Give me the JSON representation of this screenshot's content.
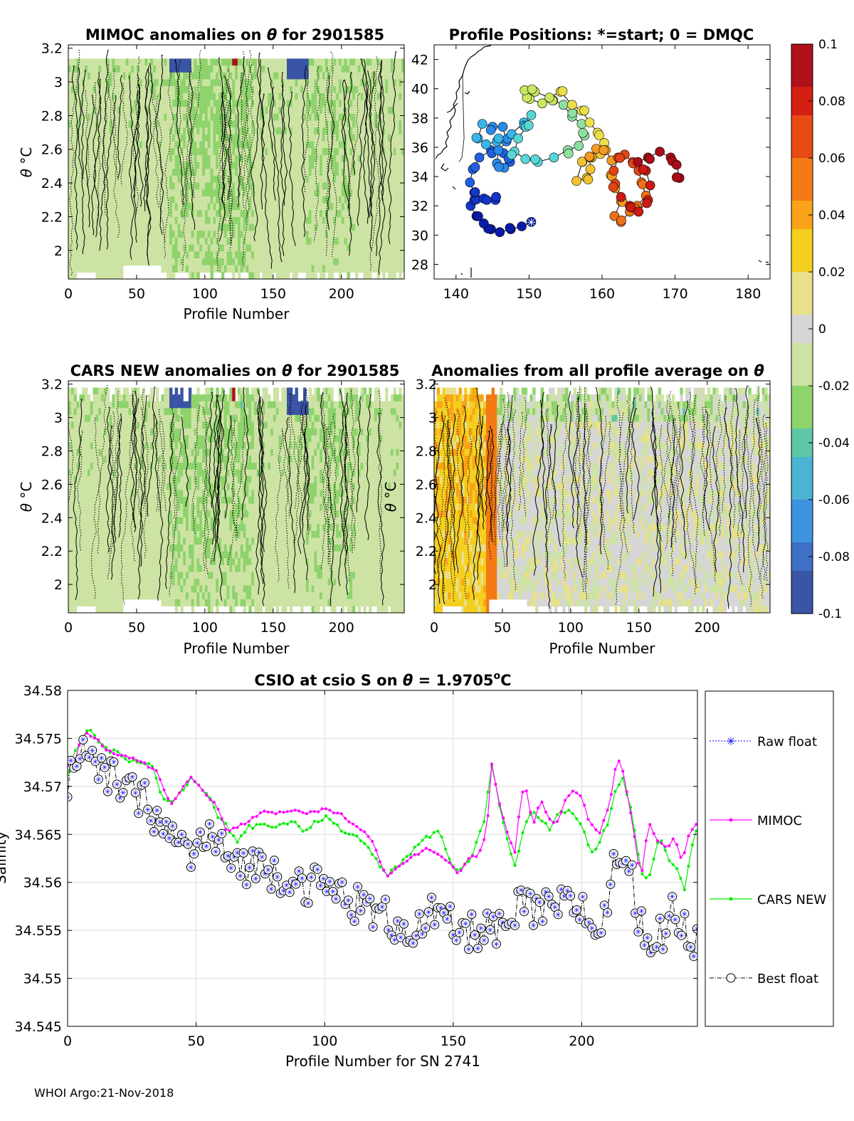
{
  "footer": "WHOI Argo:21-Nov-2018",
  "colors": {
    "mimoc": "#ff00ff",
    "cars": "#00ee00",
    "raw": "#0000ff",
    "best": "#000000",
    "grid": "#dddddd"
  },
  "chart_data": [
    {
      "id": "mimoc",
      "type": "heatmap",
      "title_left": "MIMOC anomalies on",
      "title_symbol": "θ",
      "title_right": "for 2901585",
      "xlabel": "Profile Number",
      "ylabel": "θ °C",
      "ylabel_symbol": "θ",
      "ylabel_unit": "°C",
      "xlim": [
        0,
        246
      ],
      "ylim": [
        1.83,
        3.22
      ],
      "xticks": [
        "0",
        "50",
        "100",
        "150",
        "200"
      ],
      "yticks": [
        "2",
        "2.2",
        "2.4",
        "2.6",
        "2.8",
        "3",
        "3.2"
      ],
      "value_range": [
        -0.01,
        0.006
      ],
      "note": "anomaly field with solid/dotted contours"
    },
    {
      "id": "positions",
      "type": "scatter",
      "title": "Profile Positions: *=start; 0 = DMQC",
      "xlim": [
        137,
        183
      ],
      "ylim": [
        27,
        43
      ],
      "xticks": [
        "140",
        "150",
        "160",
        "170",
        "180"
      ],
      "yticks": [
        "28",
        "30",
        "32",
        "34",
        "36",
        "38",
        "40",
        "42"
      ],
      "track": [
        [
          150.3,
          30.9
        ],
        [
          149.0,
          30.6
        ],
        [
          147.5,
          30.4
        ],
        [
          146.0,
          30.2
        ],
        [
          144.8,
          30.4
        ],
        [
          143.8,
          30.8
        ],
        [
          142.8,
          31.3
        ],
        [
          142.0,
          32.0
        ],
        [
          142.5,
          32.4
        ],
        [
          143.8,
          32.5
        ],
        [
          145.4,
          32.4
        ],
        [
          144.2,
          32.4
        ],
        [
          142.5,
          32.9
        ],
        [
          141.9,
          33.6
        ],
        [
          142.3,
          34.5
        ],
        [
          143.2,
          35.3
        ],
        [
          144.8,
          35.8
        ],
        [
          146.5,
          35.6
        ],
        [
          147.4,
          35.0
        ],
        [
          146.6,
          34.6
        ],
        [
          145.6,
          34.9
        ],
        [
          145.8,
          35.8
        ],
        [
          146.9,
          36.4
        ],
        [
          146.4,
          37.4
        ],
        [
          145.0,
          37.4
        ],
        [
          143.6,
          37.6
        ],
        [
          143.0,
          36.6
        ],
        [
          144.1,
          36.2
        ],
        [
          145.6,
          36.4
        ],
        [
          147.6,
          36.9
        ],
        [
          149.3,
          37.7
        ],
        [
          150.3,
          38.2
        ],
        [
          149.6,
          37.4
        ],
        [
          148.5,
          36.6
        ],
        [
          148.0,
          35.7
        ],
        [
          149.5,
          35.2
        ],
        [
          151.2,
          35.0
        ],
        [
          153.4,
          35.3
        ],
        [
          155.3,
          35.8
        ],
        [
          156.8,
          36.1
        ],
        [
          157.6,
          36.8
        ],
        [
          157.2,
          37.6
        ],
        [
          155.9,
          38.1
        ],
        [
          154.7,
          38.9
        ],
        [
          153.3,
          39.2
        ],
        [
          151.8,
          39.0
        ],
        [
          150.1,
          39.3
        ],
        [
          149.4,
          39.9
        ],
        [
          150.8,
          39.8
        ],
        [
          152.8,
          39.4
        ],
        [
          154.3,
          39.8
        ],
        [
          155.9,
          38.9
        ],
        [
          157.2,
          38.5
        ],
        [
          158.3,
          37.7
        ],
        [
          159.4,
          37.0
        ],
        [
          160.3,
          36.3
        ],
        [
          159.6,
          35.6
        ],
        [
          158.6,
          35.3
        ],
        [
          157.3,
          35.0
        ],
        [
          156.5,
          33.7
        ],
        [
          157.9,
          33.9
        ],
        [
          158.4,
          34.5
        ],
        [
          158.3,
          35.3
        ],
        [
          159.2,
          35.9
        ],
        [
          160.5,
          35.8
        ],
        [
          161.3,
          35.1
        ],
        [
          161.2,
          34.1
        ],
        [
          161.8,
          33.2
        ],
        [
          162.6,
          32.3
        ],
        [
          161.7,
          31.3
        ],
        [
          162.6,
          30.9
        ],
        [
          163.8,
          31.6
        ],
        [
          164.8,
          32.0
        ],
        [
          166.0,
          32.7
        ],
        [
          165.4,
          33.6
        ],
        [
          165.0,
          34.4
        ],
        [
          164.2,
          35.0
        ],
        [
          163.1,
          35.5
        ],
        [
          162.2,
          35.3
        ],
        [
          161.6,
          34.4
        ],
        [
          161.8,
          33.5
        ],
        [
          162.6,
          32.6
        ],
        [
          163.8,
          32.0
        ],
        [
          165.0,
          31.6
        ],
        [
          166.3,
          32.4
        ],
        [
          166.6,
          33.4
        ],
        [
          166.0,
          34.4
        ],
        [
          164.9,
          35.0
        ],
        [
          166.3,
          35.3
        ],
        [
          167.9,
          35.7
        ],
        [
          169.4,
          35.3
        ],
        [
          170.2,
          34.8
        ],
        [
          170.6,
          33.9
        ]
      ],
      "trench_west": [
        [
          140.9,
          41.0
        ],
        [
          141.0,
          38.5
        ],
        [
          141.1,
          36.6
        ],
        [
          140.8,
          35.3
        ],
        [
          140.4,
          35.0
        ]
      ]
    },
    {
      "id": "colorbar",
      "type": "heatmap",
      "ticks": [
        "0.1",
        "0.08",
        "0.06",
        "0.04",
        "0.02",
        "0",
        "-0.02",
        "-0.04",
        "-0.06",
        "-0.08",
        "-0.1"
      ],
      "range": [
        -0.1,
        0.1
      ],
      "colors": [
        "#3a55a5",
        "#3f70c6",
        "#3e93e0",
        "#4cb4d2",
        "#5dc6a7",
        "#8ed36c",
        "#cde3a4",
        "#d6d6d6",
        "#e8e08a",
        "#f5cf1f",
        "#f8a318",
        "#f47a15",
        "#e94a14",
        "#d41f13",
        "#b0101a"
      ]
    },
    {
      "id": "cars",
      "type": "heatmap",
      "title_left": "CARS NEW anomalies on",
      "title_symbol": "θ",
      "title_right": "for 2901585",
      "xlabel": "Profile Number",
      "ylabel": "θ °C",
      "ylabel_symbol": "θ",
      "ylabel_unit": "°C",
      "xlim": [
        0,
        246
      ],
      "ylim": [
        1.83,
        3.22
      ],
      "xticks": [
        "0",
        "50",
        "100",
        "150",
        "200"
      ],
      "yticks": [
        "2",
        "2.2",
        "2.4",
        "2.6",
        "2.8",
        "3",
        "3.2"
      ],
      "value_range": [
        -0.01,
        0.006
      ]
    },
    {
      "id": "allavg",
      "type": "heatmap",
      "title_left": "Anomalies from all profile average on",
      "title_symbol": "θ",
      "xlabel": "Profile Number",
      "ylabel": "θ °C",
      "ylabel_symbol": "θ",
      "ylabel_unit": "°C",
      "xlim": [
        0,
        246
      ],
      "ylim": [
        1.83,
        3.22
      ],
      "xticks": [
        "0",
        "50",
        "100",
        "150",
        "200"
      ],
      "yticks": [
        "2",
        "2.2",
        "2.4",
        "2.6",
        "2.8",
        "3",
        "3.2"
      ],
      "value_range": [
        -0.004,
        0.012
      ]
    },
    {
      "id": "csio",
      "type": "line",
      "title_left": "CSIO at csio S on",
      "title_symbol": "θ",
      "title_right": "= 1.9705",
      "title_sup": "o",
      "title_unit": "C",
      "xlabel": "Profile Number for SN 2741",
      "ylabel": "Salinity",
      "xlim": [
        0,
        245
      ],
      "ylim": [
        34.545,
        34.58
      ],
      "xticks": [
        "0",
        "50",
        "100",
        "150",
        "200"
      ],
      "yticks": [
        "34.545",
        "34.55",
        "34.555",
        "34.56",
        "34.565",
        "34.57",
        "34.575",
        "34.58"
      ],
      "legend": [
        "Raw float",
        "MIMOC",
        "CARS NEW",
        "Best float"
      ],
      "mimoc_ctrl": [
        [
          0,
          34.5722
        ],
        [
          3,
          34.5728
        ],
        [
          5,
          34.575
        ],
        [
          8,
          34.5755
        ],
        [
          12,
          34.5748
        ],
        [
          15,
          34.5738
        ],
        [
          20,
          34.5732
        ],
        [
          25,
          34.573
        ],
        [
          30,
          34.5724
        ],
        [
          35,
          34.5714
        ],
        [
          40,
          34.568
        ],
        [
          48,
          34.571
        ],
        [
          58,
          34.568
        ],
        [
          62,
          34.5652
        ],
        [
          66,
          34.5658
        ],
        [
          70,
          34.5662
        ],
        [
          76,
          34.5675
        ],
        [
          82,
          34.5672
        ],
        [
          88,
          34.5676
        ],
        [
          94,
          34.5672
        ],
        [
          100,
          34.5676
        ],
        [
          106,
          34.5672
        ],
        [
          110,
          34.5663
        ],
        [
          114,
          34.5656
        ],
        [
          118,
          34.5646
        ],
        [
          124,
          34.5606
        ],
        [
          128,
          34.5616
        ],
        [
          134,
          34.5626
        ],
        [
          140,
          34.5636
        ],
        [
          145,
          34.5628
        ],
        [
          149,
          34.5621
        ],
        [
          152,
          34.5608
        ],
        [
          156,
          34.5625
        ],
        [
          160,
          34.5629
        ],
        [
          163,
          34.5652
        ],
        [
          165,
          34.5722
        ],
        [
          168,
          34.5682
        ],
        [
          171,
          34.5651
        ],
        [
          174,
          34.5632
        ],
        [
          176,
          34.5682
        ],
        [
          178,
          34.5704
        ],
        [
          181,
          34.5658
        ],
        [
          184,
          34.5688
        ],
        [
          187,
          34.5666
        ],
        [
          190,
          34.5658
        ],
        [
          193,
          34.5682
        ],
        [
          197,
          34.5698
        ],
        [
          200,
          34.5688
        ],
        [
          203,
          34.5662
        ],
        [
          207,
          34.5652
        ],
        [
          211,
          34.5682
        ],
        [
          213,
          34.5718
        ],
        [
          215,
          34.5728
        ],
        [
          217,
          34.5702
        ],
        [
          220,
          34.5656
        ],
        [
          223,
          34.5602
        ],
        [
          226,
          34.5662
        ],
        [
          230,
          34.5642
        ],
        [
          233,
          34.5635
        ],
        [
          236,
          34.5648
        ],
        [
          239,
          34.5622
        ],
        [
          242,
          34.5652
        ],
        [
          245,
          34.5662
        ]
      ],
      "cars_ctrl": [
        [
          0,
          34.5712
        ],
        [
          3,
          34.5738
        ],
        [
          6,
          34.5752
        ],
        [
          9,
          34.576
        ],
        [
          12,
          34.5748
        ],
        [
          16,
          34.5738
        ],
        [
          20,
          34.5735
        ],
        [
          24,
          34.5727
        ],
        [
          28,
          34.5725
        ],
        [
          33,
          34.5722
        ],
        [
          37,
          34.5686
        ],
        [
          42,
          34.5685
        ],
        [
          48,
          34.5709
        ],
        [
          55,
          34.5692
        ],
        [
          58,
          34.5668
        ],
        [
          62,
          34.5658
        ],
        [
          66,
          34.5642
        ],
        [
          70,
          34.5658
        ],
        [
          76,
          34.5658
        ],
        [
          82,
          34.566
        ],
        [
          88,
          34.5664
        ],
        [
          92,
          34.5653
        ],
        [
          96,
          34.5662
        ],
        [
          100,
          34.5668
        ],
        [
          104,
          34.5661
        ],
        [
          108,
          34.5652
        ],
        [
          113,
          34.5646
        ],
        [
          118,
          34.5632
        ],
        [
          124,
          34.5606
        ],
        [
          128,
          34.5616
        ],
        [
          134,
          34.5632
        ],
        [
          140,
          34.5648
        ],
        [
          145,
          34.5652
        ],
        [
          149,
          34.5622
        ],
        [
          152,
          34.5612
        ],
        [
          157,
          34.5624
        ],
        [
          162,
          34.5665
        ],
        [
          165,
          34.5722
        ],
        [
          168,
          34.5682
        ],
        [
          171,
          34.5646
        ],
        [
          174,
          34.5616
        ],
        [
          178,
          34.5662
        ],
        [
          181,
          34.5672
        ],
        [
          185,
          34.5662
        ],
        [
          188,
          34.5656
        ],
        [
          191,
          34.5672
        ],
        [
          195,
          34.5676
        ],
        [
          200,
          34.5662
        ],
        [
          203,
          34.5632
        ],
        [
          206,
          34.5636
        ],
        [
          210,
          34.5662
        ],
        [
          213,
          34.5696
        ],
        [
          216,
          34.5708
        ],
        [
          219,
          34.5678
        ],
        [
          223,
          34.5612
        ],
        [
          226,
          34.5602
        ],
        [
          230,
          34.5648
        ],
        [
          234,
          34.5622
        ],
        [
          237,
          34.5612
        ],
        [
          240,
          34.5592
        ],
        [
          242,
          34.5626
        ],
        [
          245,
          34.5658
        ]
      ],
      "best_ctrl": [
        [
          0,
          34.5708
        ],
        [
          5,
          34.5745
        ],
        [
          10,
          34.5715
        ],
        [
          20,
          34.5705
        ],
        [
          25,
          34.569
        ],
        [
          32,
          34.5682
        ],
        [
          37,
          34.5655
        ],
        [
          42,
          34.5645
        ],
        [
          48,
          34.563
        ],
        [
          55,
          34.5648
        ],
        [
          62,
          34.5625
        ],
        [
          70,
          34.5618
        ],
        [
          78,
          34.5615
        ],
        [
          86,
          34.5605
        ],
        [
          94,
          34.5598
        ],
        [
          100,
          34.5595
        ],
        [
          108,
          34.5585
        ],
        [
          116,
          34.5572
        ],
        [
          122,
          34.5565
        ],
        [
          130,
          34.5555
        ],
        [
          136,
          34.555
        ],
        [
          142,
          34.5565
        ],
        [
          150,
          34.5552
        ],
        [
          156,
          34.5545
        ],
        [
          162,
          34.5555
        ],
        [
          170,
          34.5545
        ],
        [
          176,
          34.5575
        ],
        [
          184,
          34.5568
        ],
        [
          192,
          34.5575
        ],
        [
          200,
          34.5575
        ],
        [
          205,
          34.5545
        ],
        [
          210,
          34.5578
        ],
        [
          214,
          34.5635
        ],
        [
          218,
          34.5618
        ],
        [
          224,
          34.5545
        ],
        [
          230,
          34.5542
        ],
        [
          236,
          34.5568
        ],
        [
          242,
          34.5545
        ],
        [
          245,
          34.5535
        ]
      ]
    }
  ]
}
